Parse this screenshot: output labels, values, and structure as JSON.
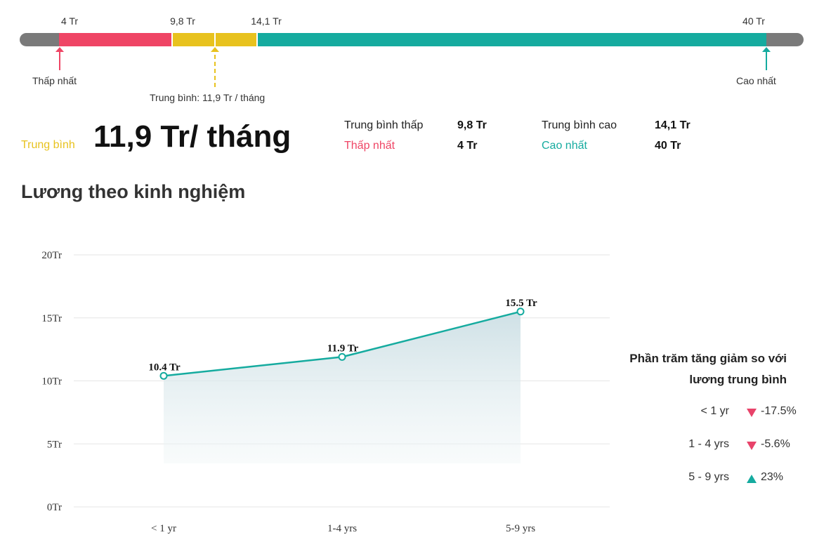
{
  "range_bar": {
    "scale_labels": [
      "4 Tr",
      "9,8 Tr",
      "14,1 Tr",
      "40 Tr"
    ],
    "lowest_caption": "Thấp nhất",
    "average_caption": "Trung bình: 11,9 Tr / tháng",
    "highest_caption": "Cao nhất",
    "colors": {
      "track": "#7a7a7a",
      "low": "#ef4565",
      "mid": "#e8c21e",
      "high": "#15ab9f"
    }
  },
  "summary": {
    "average_label": "Trung bình",
    "average_value": "11,9 Tr/ tháng",
    "avg_low_label": "Trung bình thấp",
    "avg_low_value": "9,8 Tr",
    "lowest_label": "Thấp nhất",
    "lowest_value": "4 Tr",
    "avg_high_label": "Trung bình cao",
    "avg_high_value": "14,1 Tr",
    "highest_label": "Cao nhất",
    "highest_value": "40 Tr"
  },
  "section_title": "Lương theo kinh nghiệm",
  "chart_data": {
    "type": "area",
    "categories": [
      "< 1 yr",
      "1-4 yrs",
      "5-9 yrs"
    ],
    "values": [
      10.4,
      11.9,
      15.5
    ],
    "data_labels": [
      "10.4 Tr",
      "11.9 Tr",
      "15.5 Tr"
    ],
    "y_ticks": [
      "0Tr",
      "5Tr",
      "10Tr",
      "15Tr",
      "20Tr"
    ],
    "ylim": [
      0,
      20
    ],
    "grid": true,
    "line_color": "#15ab9f"
  },
  "legend": {
    "title_line1": "Phần trăm tăng giảm so với",
    "title_line2": "lương trung bình",
    "rows": [
      {
        "label": "< 1 yr",
        "direction": "down",
        "value": "-17.5%"
      },
      {
        "label": "1 - 4 yrs",
        "direction": "down",
        "value": "-5.6%"
      },
      {
        "label": "5 - 9 yrs",
        "direction": "up",
        "value": "23%"
      }
    ]
  }
}
